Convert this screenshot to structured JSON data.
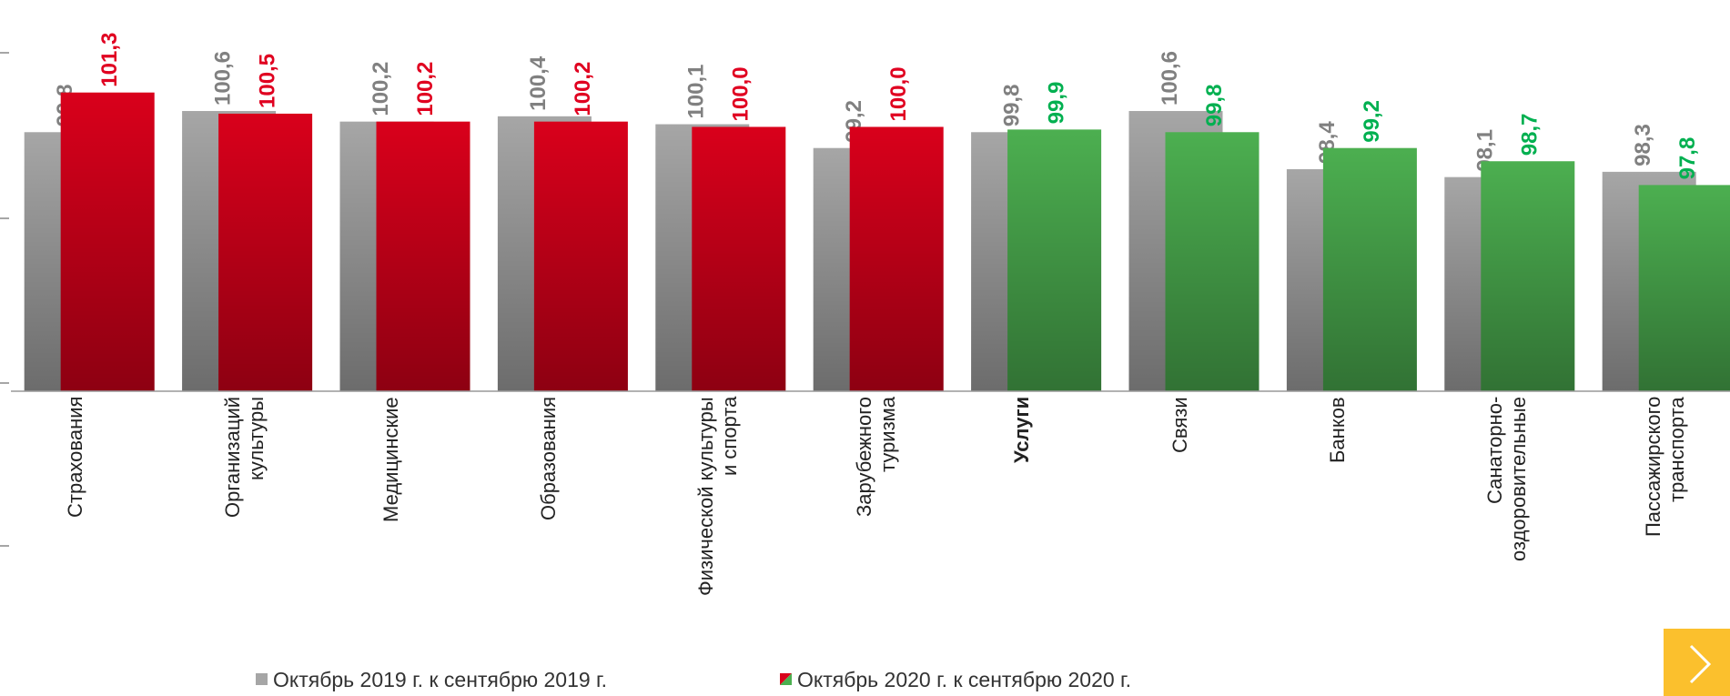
{
  "chart_data": {
    "type": "bar",
    "categories": [
      "Страхования",
      "Организаций\nкультуры",
      "Медицинские",
      "Образования",
      "Физической культуры\nи спорта",
      "Зарубежного\nтуризма",
      "Услуги",
      "Связи",
      "Банков",
      "Санаторно-\nоздоровительные",
      "Пассажирского\nтранспорта"
    ],
    "bold_index": 6,
    "series": [
      {
        "name": "Октябрь 2019 г. к сентябрю 2019 г.",
        "color": "#a6a6a6",
        "label_color": "#808080",
        "values": [
          99.8,
          100.6,
          100.2,
          100.4,
          100.1,
          99.2,
          99.8,
          100.6,
          98.4,
          98.1,
          98.3
        ],
        "value_labels": [
          "99,8",
          "100,6",
          "100,2",
          "100,4",
          "100,1",
          "99,2",
          "99,8",
          "100,6",
          "98,4",
          "98,1",
          "98,3"
        ]
      },
      {
        "name": "Октябрь 2020 г. к сентябрю 2020 г.",
        "colors": [
          "#d9001b",
          "#d9001b",
          "#d9001b",
          "#d9001b",
          "#d9001b",
          "#d9001b",
          "#4caf50",
          "#4caf50",
          "#4caf50",
          "#4caf50",
          "#4caf50"
        ],
        "label_colors": [
          "#e00020",
          "#e00020",
          "#e00020",
          "#e00020",
          "#e00020",
          "#e00020",
          "#00b050",
          "#00b050",
          "#00b050",
          "#00b050",
          "#00b050"
        ],
        "values": [
          101.3,
          100.5,
          100.2,
          100.2,
          100.0,
          100.0,
          99.9,
          99.8,
          99.2,
          98.7,
          97.8
        ],
        "value_labels": [
          "101,3",
          "100,5",
          "100,2",
          "100,2",
          "100,0",
          "100,0",
          "99,9",
          "99,8",
          "99,2",
          "98,7",
          "97,8"
        ]
      }
    ],
    "ylim": [
      90,
      104.8
    ]
  }
}
